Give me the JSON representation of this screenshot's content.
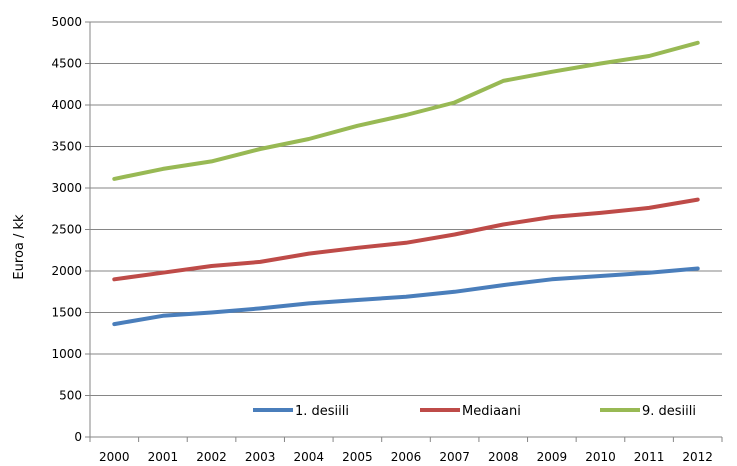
{
  "chart_data": {
    "type": "line",
    "title": "",
    "xlabel": "",
    "ylabel": "Euroa / kk",
    "categories": [
      "2000",
      "2001",
      "2002",
      "2003",
      "2004",
      "2005",
      "2006",
      "2007",
      "2008",
      "2009",
      "2010",
      "2011",
      "2012"
    ],
    "ylim": [
      0,
      5000
    ],
    "ytick_step": 500,
    "yticks": [
      "0",
      "500",
      "1000",
      "1500",
      "2000",
      "2500",
      "3000",
      "3500",
      "4000",
      "4500",
      "5000"
    ],
    "grid": true,
    "legend_position": "bottom-right inside plot",
    "series": [
      {
        "name": "1. desiili",
        "color": "#4a7ebb",
        "values": [
          1360,
          1460,
          1500,
          1550,
          1610,
          1650,
          1690,
          1750,
          1830,
          1900,
          1940,
          1980,
          2030
        ]
      },
      {
        "name": "Mediaani",
        "color": "#be4b48",
        "values": [
          1900,
          1980,
          2060,
          2110,
          2210,
          2280,
          2340,
          2440,
          2560,
          2650,
          2700,
          2760,
          2860
        ]
      },
      {
        "name": "9. desiili",
        "color": "#98b954",
        "values": [
          3110,
          3230,
          3320,
          3470,
          3590,
          3750,
          3880,
          4030,
          4290,
          4400,
          4500,
          4590,
          4750
        ]
      }
    ]
  }
}
